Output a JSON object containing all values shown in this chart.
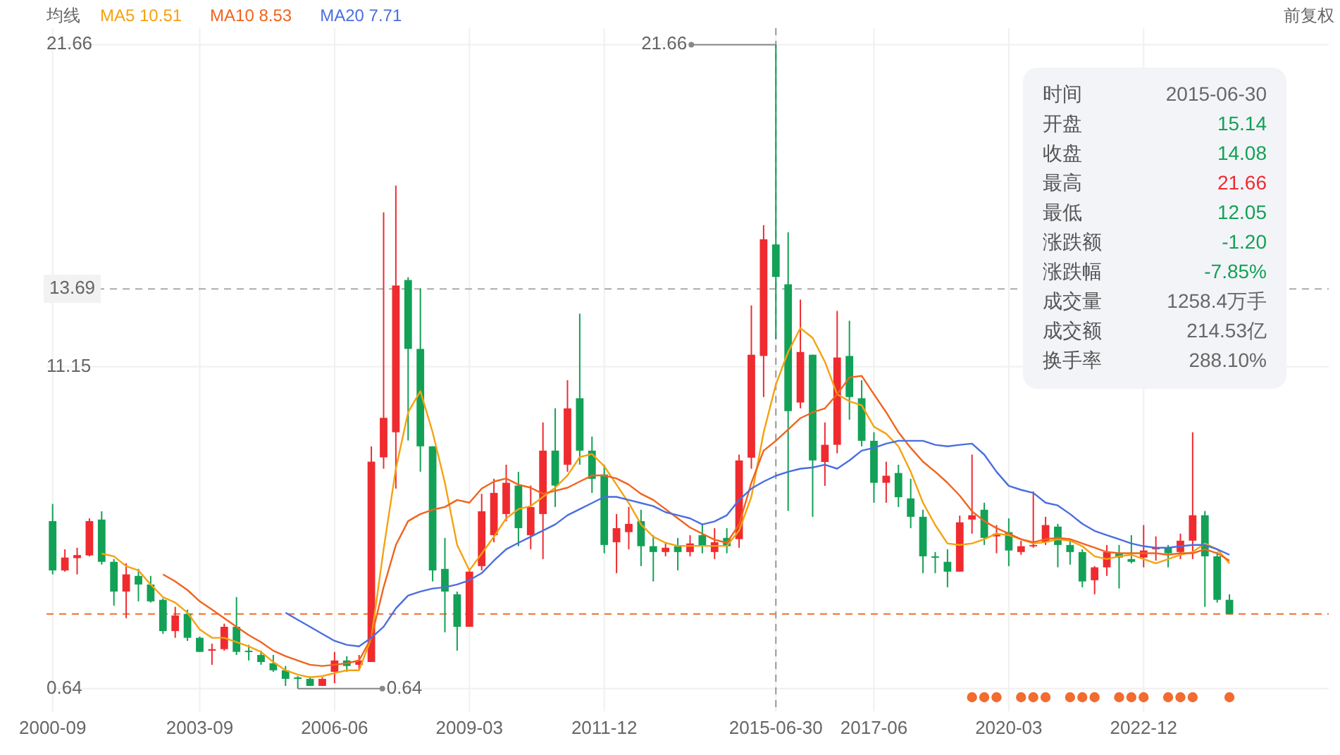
{
  "chart_data": {
    "type": "candlestick",
    "categories": [
      "2000-09",
      null,
      null,
      null,
      null,
      null,
      null,
      null,
      null,
      null,
      null,
      null,
      "2003-09",
      null,
      null,
      null,
      null,
      null,
      null,
      null,
      null,
      null,
      null,
      "2006-06",
      null,
      null,
      null,
      null,
      null,
      null,
      null,
      null,
      null,
      null,
      "2009-03",
      null,
      null,
      null,
      null,
      null,
      null,
      null,
      null,
      null,
      null,
      "2011-12",
      null,
      null,
      null,
      null,
      null,
      null,
      null,
      null,
      null,
      null,
      null,
      null,
      null,
      "2015-06-30",
      null,
      null,
      null,
      null,
      null,
      null,
      null,
      "2017-06",
      null,
      null,
      null,
      null,
      null,
      null,
      null,
      null,
      null,
      null,
      "2020-03",
      null,
      null,
      null,
      null,
      null,
      null,
      null,
      null,
      null,
      null,
      "2022-12",
      null,
      null,
      null,
      null,
      null,
      null,
      null
    ],
    "ohlc": [
      [
        6.11,
        6.67,
        4.37,
        4.5
      ],
      [
        4.5,
        5.19,
        4.46,
        4.92
      ],
      [
        4.9,
        5.24,
        4.37,
        5.0
      ],
      [
        4.99,
        6.2,
        4.96,
        6.11
      ],
      [
        6.16,
        6.43,
        4.69,
        4.78
      ],
      [
        4.78,
        4.87,
        3.35,
        3.81
      ],
      [
        3.81,
        4.73,
        2.94,
        4.37
      ],
      [
        4.32,
        4.55,
        3.49,
        4.04
      ],
      [
        4.04,
        4.32,
        3.45,
        3.49
      ],
      [
        3.54,
        3.59,
        2.43,
        2.52
      ],
      [
        2.52,
        3.31,
        2.3,
        3.03
      ],
      [
        3.08,
        3.22,
        2.2,
        2.3
      ],
      [
        2.3,
        2.34,
        1.84,
        1.84
      ],
      [
        1.88,
        2.11,
        1.42,
        1.93
      ],
      [
        1.93,
        2.76,
        1.88,
        2.66
      ],
      [
        2.66,
        3.63,
        1.74,
        1.84
      ],
      [
        1.88,
        2.07,
        1.56,
        1.84
      ],
      [
        1.74,
        1.88,
        1.42,
        1.51
      ],
      [
        1.47,
        1.74,
        1.19,
        1.24
      ],
      [
        1.24,
        1.38,
        0.73,
        0.96
      ],
      [
        1.01,
        1.05,
        0.64,
        0.96
      ],
      [
        0.96,
        1.05,
        0.73,
        0.73
      ],
      [
        0.73,
        1.01,
        0.73,
        0.96
      ],
      [
        1.19,
        1.84,
        0.82,
        1.56
      ],
      [
        1.56,
        1.7,
        1.19,
        1.38
      ],
      [
        1.42,
        1.74,
        1.24,
        1.56
      ],
      [
        1.51,
        8.55,
        1.51,
        8.05
      ],
      [
        8.19,
        16.19,
        7.82,
        9.48
      ],
      [
        9.01,
        17.06,
        7.17,
        13.8
      ],
      [
        13.98,
        14.07,
        8.74,
        11.73
      ],
      [
        11.73,
        13.7,
        7.72,
        8.55
      ],
      [
        8.55,
        8.55,
        4.14,
        4.5
      ],
      [
        4.55,
        5.56,
        2.48,
        3.81
      ],
      [
        3.72,
        3.81,
        1.88,
        2.66
      ],
      [
        2.66,
        4.5,
        2.66,
        4.46
      ],
      [
        4.64,
        7.0,
        4.5,
        6.43
      ],
      [
        5.65,
        7.49,
        5.42,
        7.03
      ],
      [
        6.34,
        7.95,
        6.11,
        7.36
      ],
      [
        7.27,
        7.72,
        5.29,
        5.88
      ],
      [
        5.65,
        7.27,
        5.19,
        6.57
      ],
      [
        6.34,
        9.33,
        4.87,
        8.41
      ],
      [
        8.41,
        9.79,
        6.57,
        7.27
      ],
      [
        7.95,
        10.71,
        7.72,
        9.79
      ],
      [
        10.12,
        12.88,
        7.95,
        8.41
      ],
      [
        8.41,
        8.87,
        7.03,
        7.49
      ],
      [
        7.63,
        7.95,
        5.06,
        5.33
      ],
      [
        5.42,
        6.34,
        4.41,
        5.88
      ],
      [
        5.75,
        6.57,
        5.19,
        6.02
      ],
      [
        6.11,
        6.48,
        4.64,
        5.29
      ],
      [
        5.29,
        5.65,
        4.14,
        5.1
      ],
      [
        5.1,
        5.42,
        4.96,
        5.24
      ],
      [
        5.29,
        5.56,
        4.5,
        5.1
      ],
      [
        5.1,
        5.65,
        4.96,
        5.38
      ],
      [
        5.65,
        6.02,
        5.06,
        5.29
      ],
      [
        5.1,
        5.88,
        4.87,
        5.42
      ],
      [
        5.56,
        5.88,
        5.06,
        5.29
      ],
      [
        5.52,
        8.28,
        5.24,
        8.09
      ],
      [
        8.18,
        13.15,
        7.82,
        11.54
      ],
      [
        11.5,
        15.77,
        10.16,
        15.31
      ],
      [
        15.14,
        21.66,
        12.05,
        14.08
      ],
      [
        13.84,
        15.54,
        6.44,
        9.7
      ],
      [
        9.98,
        13.34,
        9.79,
        11.63
      ],
      [
        11.54,
        11.54,
        6.25,
        8.09
      ],
      [
        8.04,
        9.33,
        7.26,
        8.6
      ],
      [
        8.6,
        12.97,
        8.32,
        11.45
      ],
      [
        11.5,
        12.65,
        9.42,
        10.16
      ],
      [
        10.12,
        10.71,
        8.55,
        8.73
      ],
      [
        8.73,
        9.01,
        6.71,
        7.36
      ],
      [
        7.36,
        8.05,
        6.71,
        7.59
      ],
      [
        7.68,
        7.95,
        6.57,
        6.89
      ],
      [
        6.85,
        7.49,
        5.88,
        6.25
      ],
      [
        6.25,
        6.48,
        4.41,
        4.96
      ],
      [
        4.96,
        5.1,
        4.41,
        4.92
      ],
      [
        4.78,
        5.19,
        3.95,
        4.46
      ],
      [
        4.46,
        6.29,
        4.46,
        6.07
      ],
      [
        6.16,
        8.28,
        5.7,
        6.3
      ],
      [
        6.48,
        6.71,
        5.33,
        5.56
      ],
      [
        5.61,
        5.98,
        5.06,
        5.7
      ],
      [
        5.75,
        6.2,
        4.64,
        5.15
      ],
      [
        5.1,
        5.47,
        5.01,
        5.29
      ],
      [
        5.29,
        7.08,
        5.24,
        5.33
      ],
      [
        5.42,
        6.25,
        5.33,
        5.98
      ],
      [
        5.93,
        6.02,
        4.6,
        5.33
      ],
      [
        5.33,
        5.52,
        4.69,
        5.1
      ],
      [
        5.1,
        5.19,
        3.95,
        4.14
      ],
      [
        4.18,
        4.64,
        3.72,
        4.6
      ],
      [
        4.6,
        5.33,
        4.32,
        5.1
      ],
      [
        5.06,
        5.33,
        3.91,
        4.92
      ],
      [
        4.87,
        5.65,
        4.73,
        4.78
      ],
      [
        4.92,
        5.98,
        4.6,
        5.15
      ],
      [
        5.19,
        5.61,
        4.82,
        5.24
      ],
      [
        5.24,
        5.33,
        4.6,
        5.06
      ],
      [
        5.1,
        5.7,
        4.87,
        5.47
      ],
      [
        5.47,
        9.01,
        4.87,
        6.3
      ],
      [
        6.3,
        6.44,
        3.31,
        4.96
      ],
      [
        4.96,
        5.1,
        3.45,
        3.54
      ],
      [
        3.54,
        3.72,
        3.08,
        3.08
      ]
    ],
    "series": [
      {
        "name": "MA5 10.51",
        "type": "line",
        "color": "#f5a20f",
        "values": [
          null,
          null,
          null,
          null,
          5.05,
          4.96,
          4.64,
          4.5,
          4.04,
          3.63,
          3.45,
          3.12,
          2.57,
          2.3,
          2.3,
          2.16,
          2.02,
          1.84,
          1.51,
          1.24,
          1.1,
          1.01,
          1.05,
          1.15,
          1.24,
          1.24,
          2.3,
          5.19,
          7.82,
          9.66,
          10.35,
          9.01,
          7.36,
          5.33,
          4.5,
          5.05,
          5.6,
          6.2,
          6.5,
          6.6,
          6.9,
          7.2,
          7.6,
          8.2,
          8.3,
          7.9,
          7.3,
          6.7,
          6.0,
          5.6,
          5.4,
          5.3,
          5.3,
          5.3,
          5.3,
          5.3,
          5.8,
          6.9,
          9.0,
          10.57,
          11.63,
          12.41,
          12.09,
          11.31,
          10.25,
          10.02,
          9.89,
          9.19,
          8.96,
          8.55,
          7.72,
          6.71,
          5.98,
          5.38,
          5.33,
          5.38,
          5.52,
          5.7,
          5.65,
          5.52,
          5.38,
          5.42,
          5.52,
          5.47,
          5.29,
          4.96,
          4.87,
          4.96,
          5.01,
          4.87,
          4.73,
          4.87,
          5.01,
          5.1,
          5.38,
          5.19,
          4.73
        ]
      },
      {
        "name": "MA10 8.53",
        "type": "line",
        "color": "#f0641e",
        "values": [
          null,
          null,
          null,
          null,
          null,
          null,
          null,
          null,
          null,
          4.37,
          4.14,
          3.86,
          3.49,
          3.22,
          2.94,
          2.66,
          2.39,
          2.16,
          1.88,
          1.7,
          1.56,
          1.42,
          1.38,
          1.42,
          1.47,
          1.56,
          2.3,
          3.95,
          5.33,
          6.11,
          6.34,
          6.48,
          6.57,
          6.8,
          6.71,
          7.17,
          7.4,
          7.5,
          7.3,
          7.2,
          7.0,
          7.1,
          7.2,
          7.4,
          7.6,
          7.6,
          7.5,
          7.3,
          7.0,
          6.8,
          6.5,
          6.2,
          5.9,
          5.7,
          5.5,
          5.4,
          6.0,
          7.36,
          8.41,
          8.73,
          9.1,
          9.47,
          9.66,
          9.79,
          10.25,
          10.8,
          10.85,
          10.25,
          9.66,
          9.01,
          8.5,
          8.05,
          7.72,
          7.36,
          6.94,
          6.43,
          6.11,
          5.88,
          5.7,
          5.52,
          5.42,
          5.52,
          5.56,
          5.52,
          5.38,
          5.24,
          5.1,
          5.06,
          5.06,
          5.06,
          5.06,
          5.01,
          5.06,
          5.06,
          5.19,
          5.06,
          4.82
        ]
      },
      {
        "name": "MA20 7.71",
        "type": "line",
        "color": "#4a6ee0",
        "values": [
          null,
          null,
          null,
          null,
          null,
          null,
          null,
          null,
          null,
          null,
          null,
          null,
          null,
          null,
          null,
          null,
          null,
          null,
          null,
          3.12,
          2.89,
          2.66,
          2.43,
          2.2,
          2.07,
          2.02,
          2.3,
          2.66,
          3.26,
          3.68,
          3.81,
          3.91,
          3.95,
          4.04,
          4.18,
          4.41,
          4.82,
          5.19,
          5.4,
          5.6,
          5.8,
          6.0,
          6.3,
          6.5,
          6.7,
          6.9,
          6.9,
          6.8,
          6.7,
          6.6,
          6.4,
          6.3,
          6.2,
          6.0,
          6.1,
          6.3,
          6.8,
          7.17,
          7.4,
          7.59,
          7.72,
          7.82,
          7.86,
          7.95,
          7.82,
          8.09,
          8.41,
          8.5,
          8.64,
          8.73,
          8.73,
          8.73,
          8.6,
          8.55,
          8.6,
          8.64,
          8.28,
          7.72,
          7.26,
          7.13,
          7.03,
          6.71,
          6.62,
          6.34,
          6.02,
          5.79,
          5.65,
          5.52,
          5.38,
          5.29,
          5.24,
          5.24,
          5.29,
          5.33,
          5.33,
          5.19,
          5.01
        ]
      },
      {
        "type": "scatter",
        "color": "#f26b2f",
        "marker": "circle",
        "values": [
          null,
          null,
          null,
          null,
          null,
          null,
          null,
          null,
          null,
          null,
          null,
          null,
          null,
          null,
          null,
          null,
          null,
          null,
          null,
          null,
          null,
          null,
          null,
          null,
          null,
          null,
          null,
          null,
          null,
          null,
          null,
          null,
          null,
          null,
          null,
          null,
          null,
          null,
          null,
          null,
          null,
          null,
          null,
          null,
          null,
          null,
          null,
          null,
          null,
          null,
          null,
          null,
          null,
          null,
          null,
          null,
          null,
          null,
          null,
          null,
          null,
          null,
          null,
          null,
          null,
          null,
          null,
          null,
          null,
          null,
          null,
          null,
          null,
          null,
          null,
          0.36,
          0.36,
          0.36,
          null,
          0.36,
          0.36,
          0.36,
          null,
          0.36,
          0.36,
          0.36,
          null,
          0.36,
          0.36,
          0.36,
          null,
          0.36,
          0.36,
          0.36,
          null,
          null,
          0.36
        ]
      }
    ],
    "ylim": [
      -0.1,
      22.2
    ],
    "yticks": [
      0.64,
      11.15,
      21.66
    ],
    "grid": true,
    "legend": "top left",
    "legend_title": "均线",
    "ref_lines": [
      {
        "axis": "y",
        "value": 13.69,
        "label": "13.69",
        "color": "#aaaaaa",
        "line_style": "dashed"
      },
      {
        "axis": "y",
        "value": 3.08,
        "color": "#f26b2f",
        "line_style": "dashed"
      },
      {
        "axis": "x",
        "value": "2015-06-30",
        "color": "#999999",
        "line_style": "dashed"
      }
    ],
    "annotations": [
      "前复权",
      "时间",
      "2015-06-30",
      "开盘",
      "15.14",
      "收盘",
      "14.08",
      "最高",
      "21.66",
      "最低",
      "12.05",
      "涨跌额",
      "-1.20",
      "涨跌幅",
      "-7.85%",
      "成交量",
      "1258.4万手",
      "成交额",
      "214.53亿",
      "换手率",
      "288.10%",
      "0.64",
      {
        "text": "21.66",
        "x": "2015-06-30",
        "y": 21.66
      }
    ]
  }
}
